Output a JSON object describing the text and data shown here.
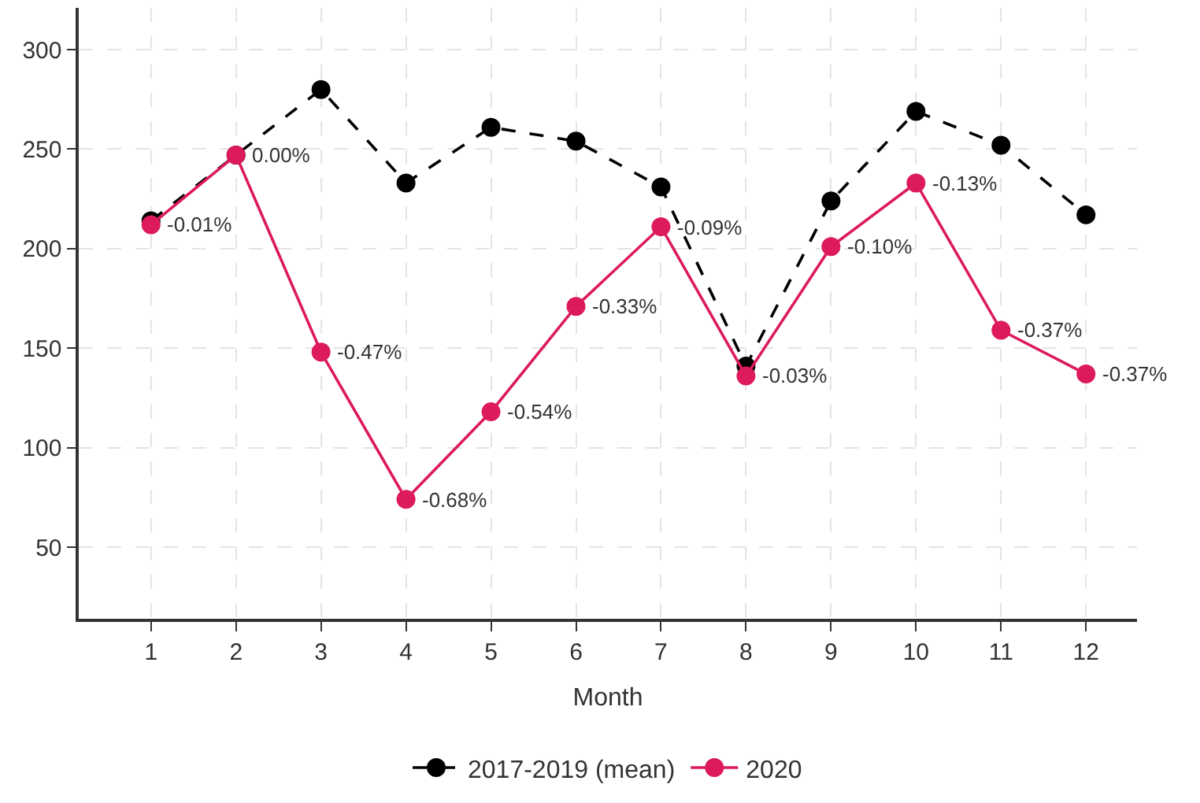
{
  "chart_data": {
    "type": "line",
    "xlabel": "Month",
    "x": [
      1,
      2,
      3,
      4,
      5,
      6,
      7,
      8,
      9,
      10,
      11,
      12
    ],
    "series": [
      {
        "name": "2017-2019 (mean)",
        "color": "#000000",
        "line_style": "dashed",
        "values": [
          214,
          247,
          280,
          233,
          261,
          254,
          231,
          141,
          224,
          269,
          252,
          217
        ]
      },
      {
        "name": "2020",
        "color": "#dc1a5c",
        "line_style": "solid",
        "values": [
          212,
          247,
          148,
          74,
          118,
          171,
          211,
          136,
          201,
          233,
          159,
          137
        ]
      }
    ],
    "annotations": [
      {
        "text": "-0.01%",
        "x": 1,
        "y": 212
      },
      {
        "text": "0.00%",
        "x": 2,
        "y": 247
      },
      {
        "text": "-0.47%",
        "x": 3,
        "y": 148
      },
      {
        "text": "-0.68%",
        "x": 4,
        "y": 74
      },
      {
        "text": "-0.54%",
        "x": 5,
        "y": 118
      },
      {
        "text": "-0.33%",
        "x": 6,
        "y": 171
      },
      {
        "text": "-0.09%",
        "x": 7,
        "y": 211
      },
      {
        "text": "-0.03%",
        "x": 8,
        "y": 136
      },
      {
        "text": "-0.10%",
        "x": 9,
        "y": 201
      },
      {
        "text": "-0.13%",
        "x": 10,
        "y": 233
      },
      {
        "text": "-0.37%",
        "x": 11,
        "y": 159
      },
      {
        "text": "-0.37%",
        "x": 12,
        "y": 137
      }
    ],
    "xlim": [
      0.15,
      12.6
    ],
    "xticks": [
      1,
      2,
      3,
      4,
      5,
      6,
      7,
      8,
      9,
      10,
      11,
      12
    ],
    "ylim": [
      14,
      321
    ],
    "yticks": [
      50,
      100,
      150,
      200,
      250,
      300
    ],
    "grid": true,
    "legend": "bottom",
    "marker": "circle"
  }
}
